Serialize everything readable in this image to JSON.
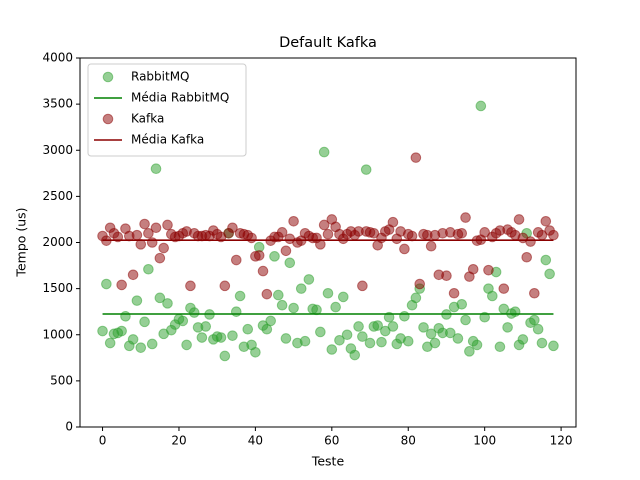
{
  "chart_data": {
    "type": "scatter",
    "title": "Default Kafka",
    "x_label": "Teste",
    "y_label": "Tempo (us)",
    "xlim": [
      -5.9,
      123.9
    ],
    "ylim": [
      0,
      4000
    ],
    "xticks": [
      0,
      20,
      40,
      60,
      80,
      100,
      120
    ],
    "yticks": [
      0,
      500,
      1000,
      1500,
      2000,
      2500,
      3000,
      3500,
      4000
    ],
    "legend": "upper left",
    "x": [
      0,
      1,
      2,
      3,
      4,
      5,
      6,
      7,
      8,
      9,
      10,
      11,
      12,
      13,
      14,
      15,
      16,
      17,
      18,
      19,
      20,
      21,
      22,
      23,
      24,
      25,
      26,
      27,
      28,
      29,
      30,
      31,
      32,
      33,
      34,
      35,
      36,
      37,
      38,
      39,
      40,
      41,
      42,
      43,
      44,
      45,
      46,
      47,
      48,
      49,
      50,
      51,
      52,
      53,
      54,
      55,
      56,
      57,
      58,
      59,
      60,
      61,
      62,
      63,
      64,
      65,
      66,
      67,
      68,
      69,
      70,
      71,
      72,
      73,
      74,
      75,
      76,
      77,
      78,
      79,
      80,
      81,
      82,
      83,
      84,
      85,
      86,
      87,
      88,
      89,
      90,
      91,
      92,
      93,
      94,
      95,
      96,
      97,
      98,
      99,
      100,
      101,
      102,
      103,
      104,
      105,
      106,
      107,
      108,
      109,
      110,
      111,
      112,
      113,
      114,
      115,
      116,
      117,
      118
    ],
    "series": [
      {
        "name": "RabbitMQ",
        "type": "scatter",
        "color": "#2ca02c",
        "values": [
          1040,
          1550,
          910,
          1010,
          1020,
          1040,
          1200,
          880,
          950,
          1370,
          860,
          1140,
          1710,
          900,
          2800,
          1400,
          1010,
          1340,
          1050,
          1110,
          1170,
          1150,
          890,
          1290,
          1240,
          1080,
          970,
          1090,
          1220,
          950,
          980,
          970,
          770,
          2100,
          990,
          1250,
          1420,
          870,
          1060,
          890,
          810,
          1950,
          1100,
          1060,
          1150,
          1850,
          1430,
          1320,
          960,
          1780,
          1290,
          910,
          1500,
          930,
          1600,
          1280,
          1270,
          1030,
          2980,
          1450,
          840,
          1300,
          940,
          1410,
          1000,
          850,
          780,
          1090,
          980,
          2790,
          910,
          1090,
          1100,
          920,
          1040,
          1190,
          1090,
          900,
          960,
          1200,
          930,
          1320,
          1400,
          1500,
          1080,
          870,
          1010,
          910,
          1070,
          1020,
          1220,
          1020,
          1300,
          960,
          1330,
          1160,
          820,
          930,
          890,
          3480,
          1190,
          1500,
          1420,
          1680,
          870,
          1280,
          1080,
          1230,
          1250,
          890,
          950,
          2100,
          1130,
          1160,
          1060,
          910,
          1810,
          1660,
          880
        ]
      },
      {
        "name": "Média RabbitMQ",
        "type": "line",
        "color": "#008000",
        "x": [
          0,
          118
        ],
        "values": [
          1225,
          1225
        ]
      },
      {
        "name": "Kafka",
        "type": "scatter",
        "color": "#8b0000",
        "values": [
          2070,
          2020,
          2160,
          2100,
          2060,
          1540,
          2150,
          2070,
          1650,
          2080,
          1980,
          2200,
          2100,
          2000,
          2160,
          1830,
          1940,
          2190,
          2090,
          2060,
          2070,
          2100,
          2120,
          1530,
          2100,
          2070,
          2070,
          2080,
          2070,
          2130,
          2090,
          2060,
          1530,
          2100,
          2160,
          1810,
          2100,
          2090,
          2080,
          2050,
          1850,
          1860,
          1690,
          1440,
          2020,
          2060,
          2060,
          2110,
          1910,
          2040,
          2230,
          2000,
          2020,
          2100,
          2070,
          2050,
          2050,
          1980,
          2190,
          2090,
          2250,
          2170,
          2090,
          2040,
          2090,
          2120,
          2080,
          2120,
          1530,
          2120,
          2110,
          2100,
          1970,
          2050,
          2120,
          2140,
          2220,
          2040,
          2120,
          1930,
          2090,
          2070,
          2920,
          1550,
          2090,
          2080,
          1960,
          2080,
          1650,
          2100,
          1640,
          2110,
          1450,
          2090,
          2100,
          2270,
          1630,
          1710,
          2020,
          2030,
          2110,
          1700,
          2060,
          2100,
          2130,
          1500,
          2140,
          2110,
          2080,
          2250,
          2050,
          1840,
          2010,
          1450,
          2110,
          2080,
          2230,
          2130,
          2080
        ]
      },
      {
        "name": "Média Kafka",
        "type": "line",
        "color": "#8b0000",
        "x": [
          0,
          118
        ],
        "values": [
          2025,
          2025
        ]
      }
    ]
  }
}
